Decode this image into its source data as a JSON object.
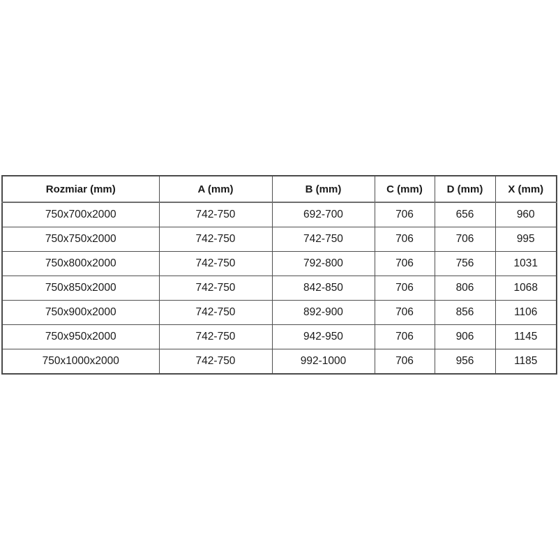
{
  "colors": {
    "background": "#ffffff",
    "border": "#4f4f4f",
    "text": "#1a1a1a"
  },
  "chart_data": {
    "type": "table",
    "title": "",
    "columns": [
      "Rozmiar (mm)",
      "A (mm)",
      "B (mm)",
      "C (mm)",
      "D (mm)",
      "X (mm)"
    ],
    "rows": [
      [
        "750x700x2000",
        "742-750",
        "692-700",
        "706",
        "656",
        "960"
      ],
      [
        "750x750x2000",
        "742-750",
        "742-750",
        "706",
        "706",
        "995"
      ],
      [
        "750x800x2000",
        "742-750",
        "792-800",
        "706",
        "756",
        "1031"
      ],
      [
        "750x850x2000",
        "742-750",
        "842-850",
        "706",
        "806",
        "1068"
      ],
      [
        "750x900x2000",
        "742-750",
        "892-900",
        "706",
        "856",
        "1106"
      ],
      [
        "750x950x2000",
        "742-750",
        "942-950",
        "706",
        "906",
        "1145"
      ],
      [
        "750x1000x2000",
        "742-750",
        "992-1000",
        "706",
        "956",
        "1185"
      ]
    ]
  }
}
